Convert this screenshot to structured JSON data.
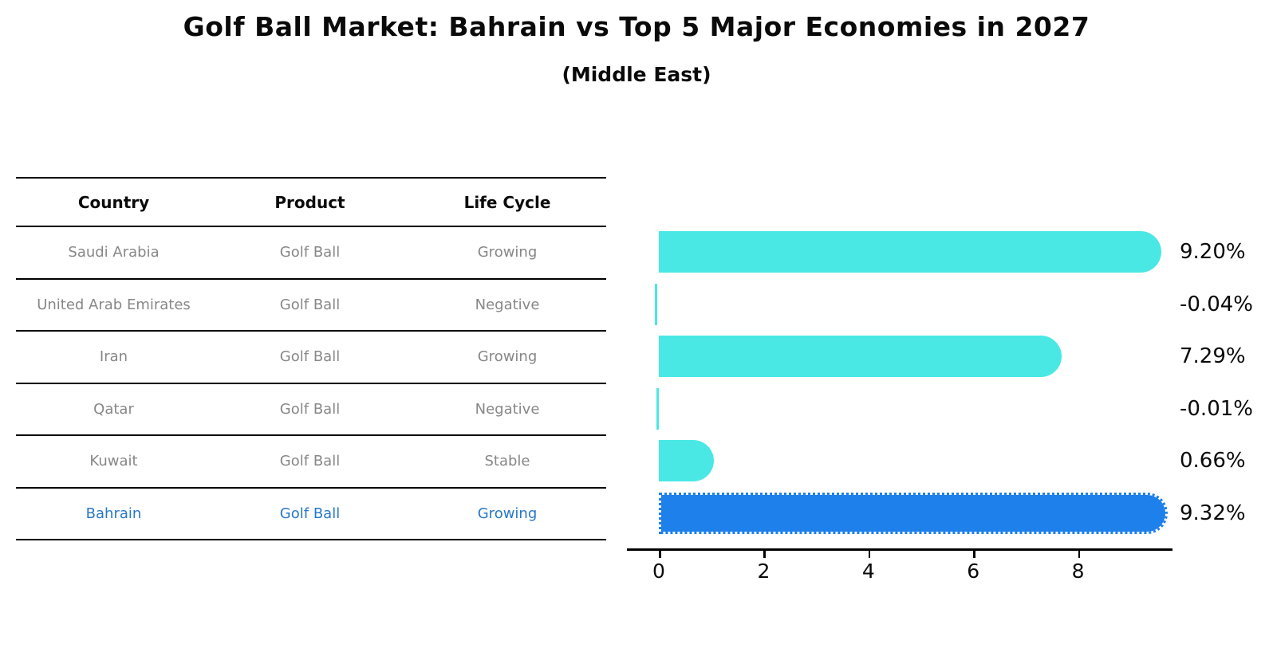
{
  "title": "Golf Ball Market: Bahrain vs Top 5 Major Economies in 2027",
  "subtitle": "(Middle East)",
  "colors": {
    "bar_default": "#4AE8E4",
    "bar_highlight": "#1E80EB",
    "highlight_text": "#2878C8",
    "table_text": "#878787",
    "label_text": "#0a0a0a"
  },
  "table": {
    "headers": [
      "Country",
      "Product",
      "Life Cycle"
    ],
    "rows": [
      {
        "country": "Saudi Arabia",
        "product": "Golf Ball",
        "life_cycle": "Growing",
        "highlight": false
      },
      {
        "country": "United Arab Emirates",
        "product": "Golf Ball",
        "life_cycle": "Negative",
        "highlight": false
      },
      {
        "country": "Iran",
        "product": "Golf Ball",
        "life_cycle": "Growing",
        "highlight": false
      },
      {
        "country": "Qatar",
        "product": "Golf Ball",
        "life_cycle": "Negative",
        "highlight": false
      },
      {
        "country": "Kuwait",
        "product": "Golf Ball",
        "life_cycle": "Stable",
        "highlight": false
      },
      {
        "country": "Bahrain",
        "product": "Golf Ball",
        "life_cycle": "Growing",
        "highlight": true
      }
    ]
  },
  "chart_data": {
    "type": "bar",
    "orientation": "horizontal",
    "title": "Golf Ball Market: Bahrain vs Top 5 Major Economies in 2027 (Middle East)",
    "categories": [
      "Saudi Arabia",
      "United Arab Emirates",
      "Iran",
      "Qatar",
      "Kuwait",
      "Bahrain"
    ],
    "values": [
      9.2,
      -0.04,
      7.29,
      -0.01,
      0.66,
      9.32
    ],
    "value_labels": [
      "9.20%",
      "-0.04%",
      "7.29%",
      "-0.01%",
      "0.66%",
      "9.32%"
    ],
    "highlight_category": "Bahrain",
    "x_ticks": [
      0,
      2,
      4,
      6,
      8
    ],
    "xlim": [
      -0.6,
      9.8
    ],
    "xlabel": "",
    "ylabel": "",
    "grid": false,
    "legend": "none"
  }
}
